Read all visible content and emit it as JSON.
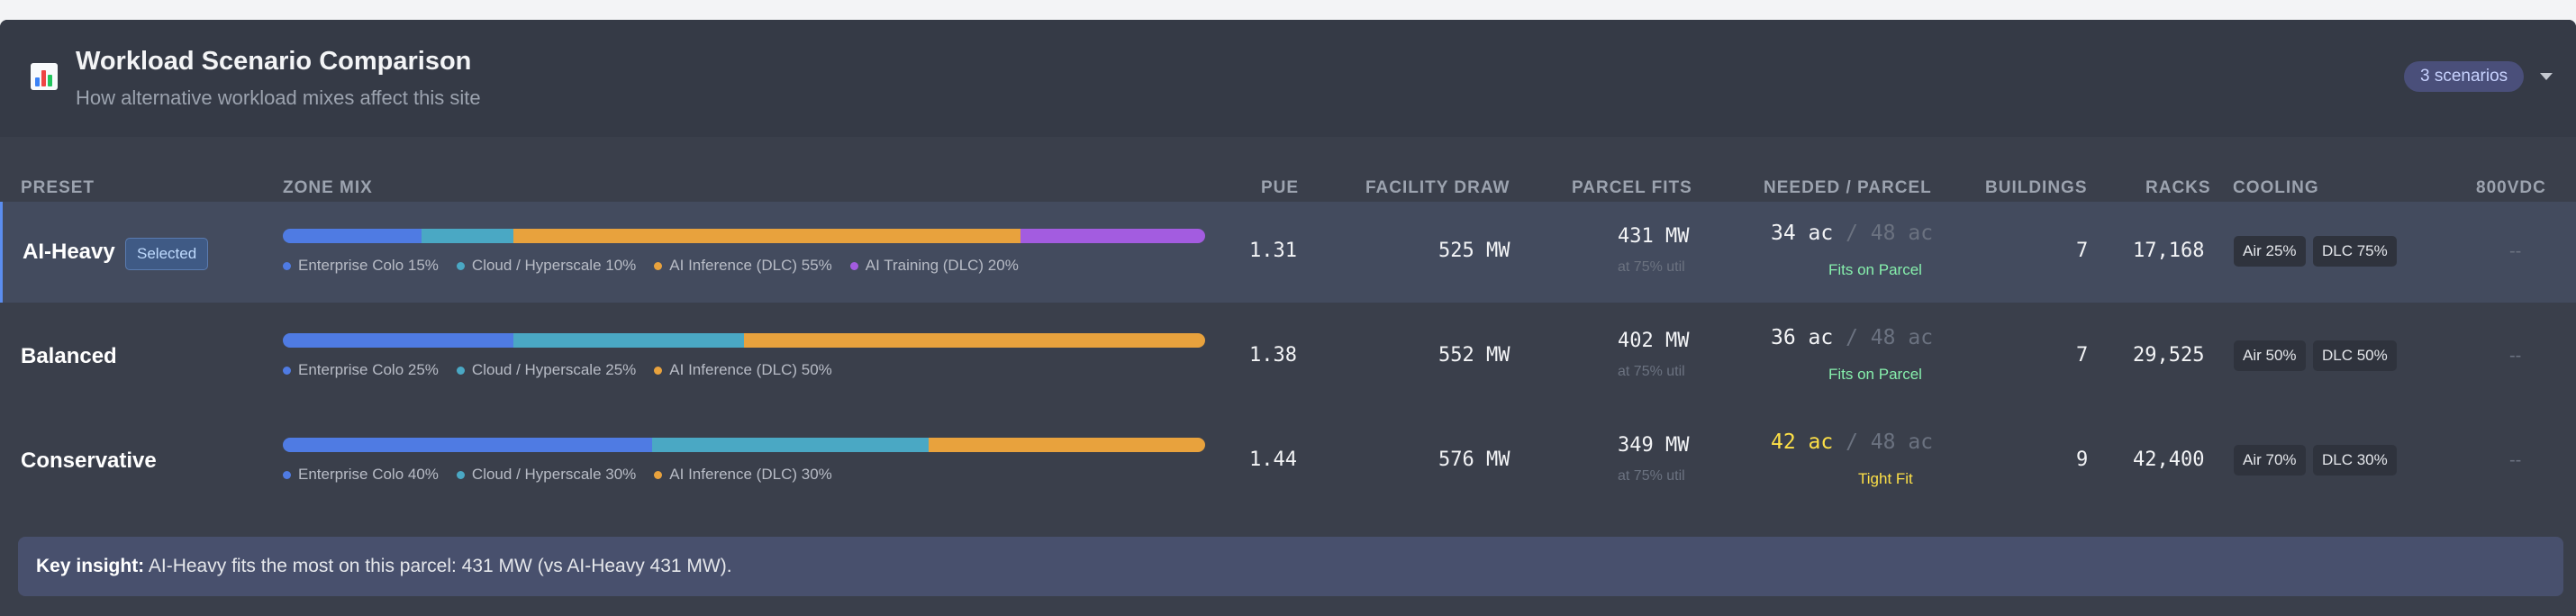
{
  "header": {
    "icon": "bar-chart-icon",
    "title": "Workload Scenario Comparison",
    "subtitle": "How alternative workload mixes affect this site",
    "scenarios_pill": "3 scenarios",
    "collapse_icon": "chevron-down-icon"
  },
  "columns": {
    "preset": "PRESET",
    "zone_mix": "ZONE MIX",
    "pue": "PUE",
    "facility_draw": "FACILITY DRAW",
    "parcel_fits": "PARCEL FITS",
    "needed_parcel": "NEEDED / PARCEL",
    "buildings": "BUILDINGS",
    "racks": "RACKS",
    "cooling": "COOLING",
    "vdc": "800VDC"
  },
  "colors": {
    "enterprise_colo": "#4f7be3",
    "cloud_hyperscale": "#4aa8c4",
    "ai_inference": "#e8a23d",
    "ai_training": "#a35ce0",
    "fits_on_parcel": "#86efac",
    "tight_fit": "#fde047"
  },
  "rows": [
    {
      "name": "AI-Heavy",
      "badge": "Selected",
      "mix": [
        {
          "label": "Enterprise Colo 15%",
          "pct": 15,
          "color": "#4f7be3"
        },
        {
          "label": "Cloud / Hyperscale 10%",
          "pct": 10,
          "color": "#4aa8c4"
        },
        {
          "label": "AI Inference (DLC) 55%",
          "pct": 55,
          "color": "#e8a23d"
        },
        {
          "label": "AI Training (DLC) 20%",
          "pct": 20,
          "color": "#a35ce0"
        }
      ],
      "pue": "1.31",
      "facility_draw": "525 MW",
      "parcel_fits": "431 MW",
      "util": "at 75% util",
      "needed": "34 ac",
      "parcel": "/ 48 ac",
      "fit_status": "Fits on Parcel",
      "buildings": "7",
      "racks": "17,168",
      "cooling_air": "Air 25%",
      "cooling_dlc": "DLC 75%",
      "vdc": "--"
    },
    {
      "name": "Balanced",
      "mix": [
        {
          "label": "Enterprise Colo 25%",
          "pct": 25,
          "color": "#4f7be3"
        },
        {
          "label": "Cloud / Hyperscale 25%",
          "pct": 25,
          "color": "#4aa8c4"
        },
        {
          "label": "AI Inference (DLC) 50%",
          "pct": 50,
          "color": "#e8a23d"
        }
      ],
      "pue": "1.38",
      "facility_draw": "552 MW",
      "parcel_fits": "402 MW",
      "util": "at 75% util",
      "needed": "36 ac",
      "parcel": "/ 48 ac",
      "fit_status": "Fits on Parcel",
      "buildings": "7",
      "racks": "29,525",
      "cooling_air": "Air 50%",
      "cooling_dlc": "DLC 50%",
      "vdc": "--"
    },
    {
      "name": "Conservative",
      "mix": [
        {
          "label": "Enterprise Colo 40%",
          "pct": 40,
          "color": "#4f7be3"
        },
        {
          "label": "Cloud / Hyperscale 30%",
          "pct": 30,
          "color": "#4aa8c4"
        },
        {
          "label": "AI Inference (DLC) 30%",
          "pct": 30,
          "color": "#e8a23d"
        }
      ],
      "pue": "1.44",
      "facility_draw": "576 MW",
      "parcel_fits": "349 MW",
      "util": "at 75% util",
      "needed": "42 ac",
      "parcel": "/ 48 ac",
      "fit_status": "Tight Fit",
      "buildings": "9",
      "racks": "42,400",
      "cooling_air": "Air 70%",
      "cooling_dlc": "DLC 30%",
      "vdc": "--"
    }
  ],
  "insight": {
    "label": "Key insight:",
    "text": "AI-Heavy fits the most on this parcel: 431 MW (vs AI-Heavy 431 MW)."
  }
}
